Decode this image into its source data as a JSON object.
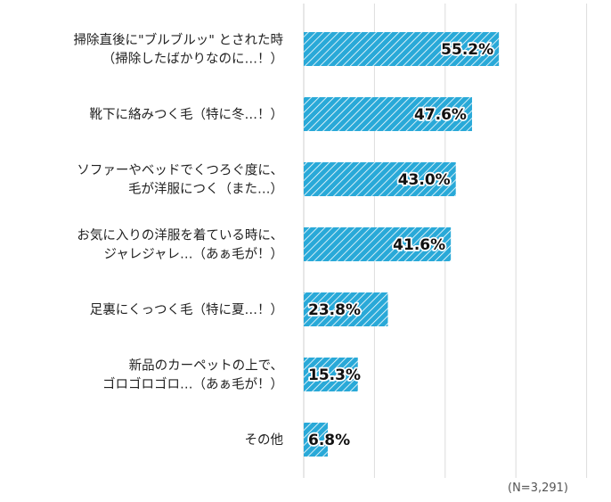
{
  "chart_data": {
    "type": "bar",
    "orientation": "horizontal",
    "categories": [
      [
        "掃除直後に\"ブルブルッ\" とされた時",
        "（掃除したばかりなのに…！）"
      ],
      [
        "靴下に絡みつく毛（特に冬…！）"
      ],
      [
        "ソファーやベッドでくつろぐ度に、",
        "毛が洋服につく（また…）"
      ],
      [
        "お気に入りの洋服を着ている時に、",
        "ジャレジャレ…（あぁ毛が！）"
      ],
      [
        "足裏にくっつく毛（特に夏…！）"
      ],
      [
        "新品のカーペットの上で、",
        "ゴロゴロゴロ…（あぁ毛が！）"
      ],
      [
        "その他"
      ]
    ],
    "values": [
      55.2,
      47.6,
      43.0,
      41.6,
      23.8,
      15.3,
      6.8
    ],
    "value_labels": [
      "55.2%",
      "47.6%",
      "43.0%",
      "41.6%",
      "23.8%",
      "15.3%",
      "6.8%"
    ],
    "xlim": [
      0,
      100
    ],
    "grid": true,
    "bar_color": "#29a9d8",
    "bar_pattern": "diagonal-stripes"
  },
  "note": "(N=3,291)"
}
